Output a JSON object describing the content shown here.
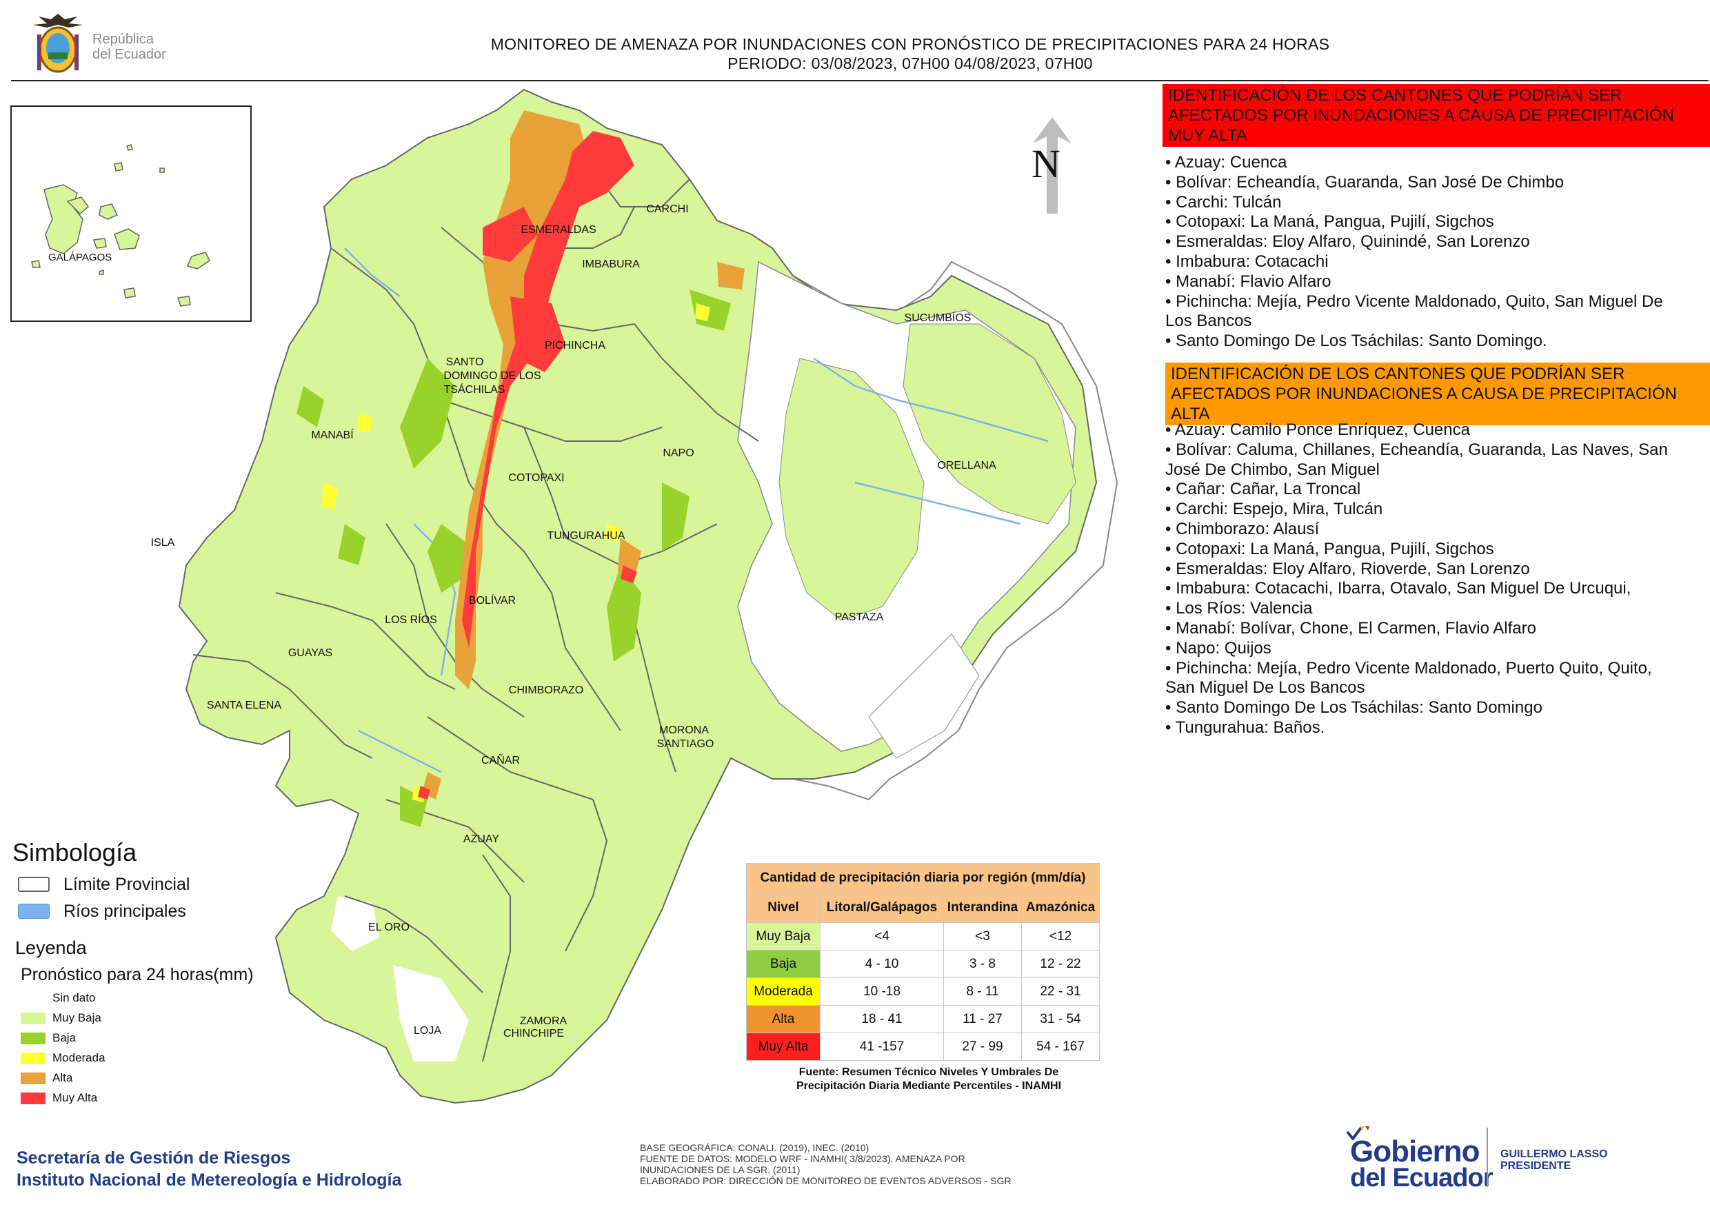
{
  "header": {
    "logo_text_line1": "República",
    "logo_text_line2": "del Ecuador",
    "title_line1": "MONITOREO DE AMENAZA POR INUNDACIONES  CON PRONÓSTICO DE  PRECIPITACIONES PARA 24 HORAS",
    "title_line2": "PERIODO: 03/08/2023, 07H00 04/08/2023, 07H00"
  },
  "map": {
    "north_label": "N",
    "provinces": [
      "CARCHI",
      "ESMERALDAS",
      "IMBABURA",
      "SUCUMBÍOS",
      "PICHINCHA",
      "SANTO",
      "DOMINGO DE LOS",
      "TSÁCHILAS",
      "MANABÍ",
      "NAPO",
      "ORELLANA",
      "COTOPAXI",
      "TUNGURAHUA",
      "ISLA",
      "BOLÍVAR",
      "LOS RÍOS",
      "PASTAZA",
      "GUAYAS",
      "CHIMBORAZO",
      "SANTA ELENA",
      "MORONA",
      "SANTIAGO",
      "CAÑAR",
      "AZUAY",
      "EL ORO",
      "ZAMORA",
      "CHINCHIPE",
      "LOJA"
    ],
    "inset_label": "GALÁPAGOS",
    "colors": {
      "muy_baja": "#d9f59a",
      "baja": "#99d22b",
      "moderada": "#ffff33",
      "alta": "#e8a23a",
      "muy_alta": "#ff3b3b",
      "rivers": "#7fb3e8",
      "border": "#666666"
    }
  },
  "panel": {
    "muy_alta_heading": [
      "IDENTIFICACIÓN DE LOS CANTONES QUE PODRÍAN SER",
      "AFECTADOS POR INUNDACIONES  A CAUSA DE PRECIPITACIÓN",
      "MUY ALTA"
    ],
    "muy_alta_items": [
      "• Azuay: Cuenca",
      "• Bolívar: Echeandía, Guaranda, San José De Chimbo",
      "• Carchi: Tulcán",
      "• Cotopaxi: La Maná, Pangua, Pujilí, Sigchos",
      "• Esmeraldas: Eloy Alfaro, Quinindé, San Lorenzo",
      "• Imbabura: Cotacachi",
      "• Manabí: Flavio Alfaro",
      "• Pichincha: Mejía, Pedro Vicente Maldonado, Quito, San Miguel De",
      "Los Bancos",
      "• Santo Domingo De Los Tsáchilas: Santo Domingo."
    ],
    "alta_heading": [
      "IDENTIFICACIÓN DE LOS CANTONES QUE  PODRÍAN SER",
      "AFECTADOS POR INUNDACIONES  A CAUSA DE PRECIPITACIÓN",
      "ALTA"
    ],
    "alta_items": [
      "• Azuay: Camilo Ponce Enríquez, Cuenca",
      "• Bolívar: Caluma, Chillanes, Echeandía, Guaranda, Las Naves, San",
      "José De Chimbo, San Miguel",
      "• Cañar: Cañar, La Troncal",
      "• Carchi: Espejo, Mira, Tulcán",
      "• Chimborazo: Alausí",
      "• Cotopaxi: La Maná, Pangua, Pujilí, Sigchos",
      "• Esmeraldas: Eloy Alfaro, Rioverde, San Lorenzo",
      "• Imbabura: Cotacachi, Ibarra, Otavalo, San Miguel De Urcuqui,",
      "• Los Ríos: Valencia",
      "• Manabí: Bolívar, Chone, El Carmen, Flavio Alfaro",
      "• Napo: Quijos",
      "• Pichincha: Mejía, Pedro Vicente Maldonado, Puerto Quito, Quito,",
      "San Miguel De Los Bancos",
      "• Santo Domingo De Los Tsáchilas: Santo Domingo",
      "• Tungurahua: Baños."
    ]
  },
  "legend": {
    "simbologia_title": "Simbología",
    "limite": "Límite Provincial",
    "rios": "Ríos principales",
    "leyenda_title": "Leyenda",
    "pronostico_title": "Pronóstico para 24 horas(mm)",
    "levels": [
      {
        "label": "Sin dato",
        "color": "#ffffff"
      },
      {
        "label": "Muy Baja",
        "color": "#d9f59a"
      },
      {
        "label": "Baja",
        "color": "#99d22b"
      },
      {
        "label": "Moderada",
        "color": "#ffff33"
      },
      {
        "label": "Alta",
        "color": "#e8a23a"
      },
      {
        "label": "Muy Alta",
        "color": "#ff3b3b"
      }
    ]
  },
  "table": {
    "title": "Cantidad de precipitación diaria por región (mm/día)",
    "headers": [
      "Nivel",
      "Litoral/Galápagos",
      "Interandina",
      "Amazónica"
    ],
    "rows": [
      {
        "nivel": "Muy Baja",
        "color": "#d9f59a",
        "values": [
          "<4",
          "<3",
          "<12"
        ]
      },
      {
        "nivel": "Baja",
        "color": "#8fcd41",
        "values": [
          "4 - 10",
          "3 - 8",
          "12 - 22"
        ]
      },
      {
        "nivel": "Moderada",
        "color": "#ffff00",
        "values": [
          "10 -18",
          "8 - 11",
          "22 - 31"
        ]
      },
      {
        "nivel": "Alta",
        "color": "#f0932f",
        "values": [
          "18 - 41",
          "11 - 27",
          "31 - 54"
        ]
      },
      {
        "nivel": "Muy Alta",
        "color": "#ff1f1f",
        "values": [
          "41 -157",
          "27 - 99",
          "54 - 167"
        ]
      }
    ],
    "source_line1": "Fuente: Resumen Técnico Niveles Y Umbrales De",
    "source_line2": "Precipitación Diaria Mediante Percentiles - INAMHI"
  },
  "footer": {
    "org_line1": "Secretaría de Gestión de Riesgos",
    "org_line2": "Instituto Nacional de Metereología e Hidrología",
    "meta_line1": "BASE GEOGRÁFICA: CONALI. (2019), INEC. (2010)",
    "meta_line2": "FUENTE DE DATOS: MODELO WRF - INAMHI( 3/8/2023).  AMENAZA POR",
    "meta_line3": "INUNDACIONES DE LA SGR. (2011)",
    "meta_line4": "ELABORADO POR: DIRECCIÓN DE MONITOREO DE EVENTOS ADVERSOS - SGR",
    "gobierno_line1": "Gobierno",
    "gobierno_line2": "del Ecuador",
    "president_line1": "GUILLERMO LASSO",
    "president_line2": "PRESIDENTE"
  }
}
